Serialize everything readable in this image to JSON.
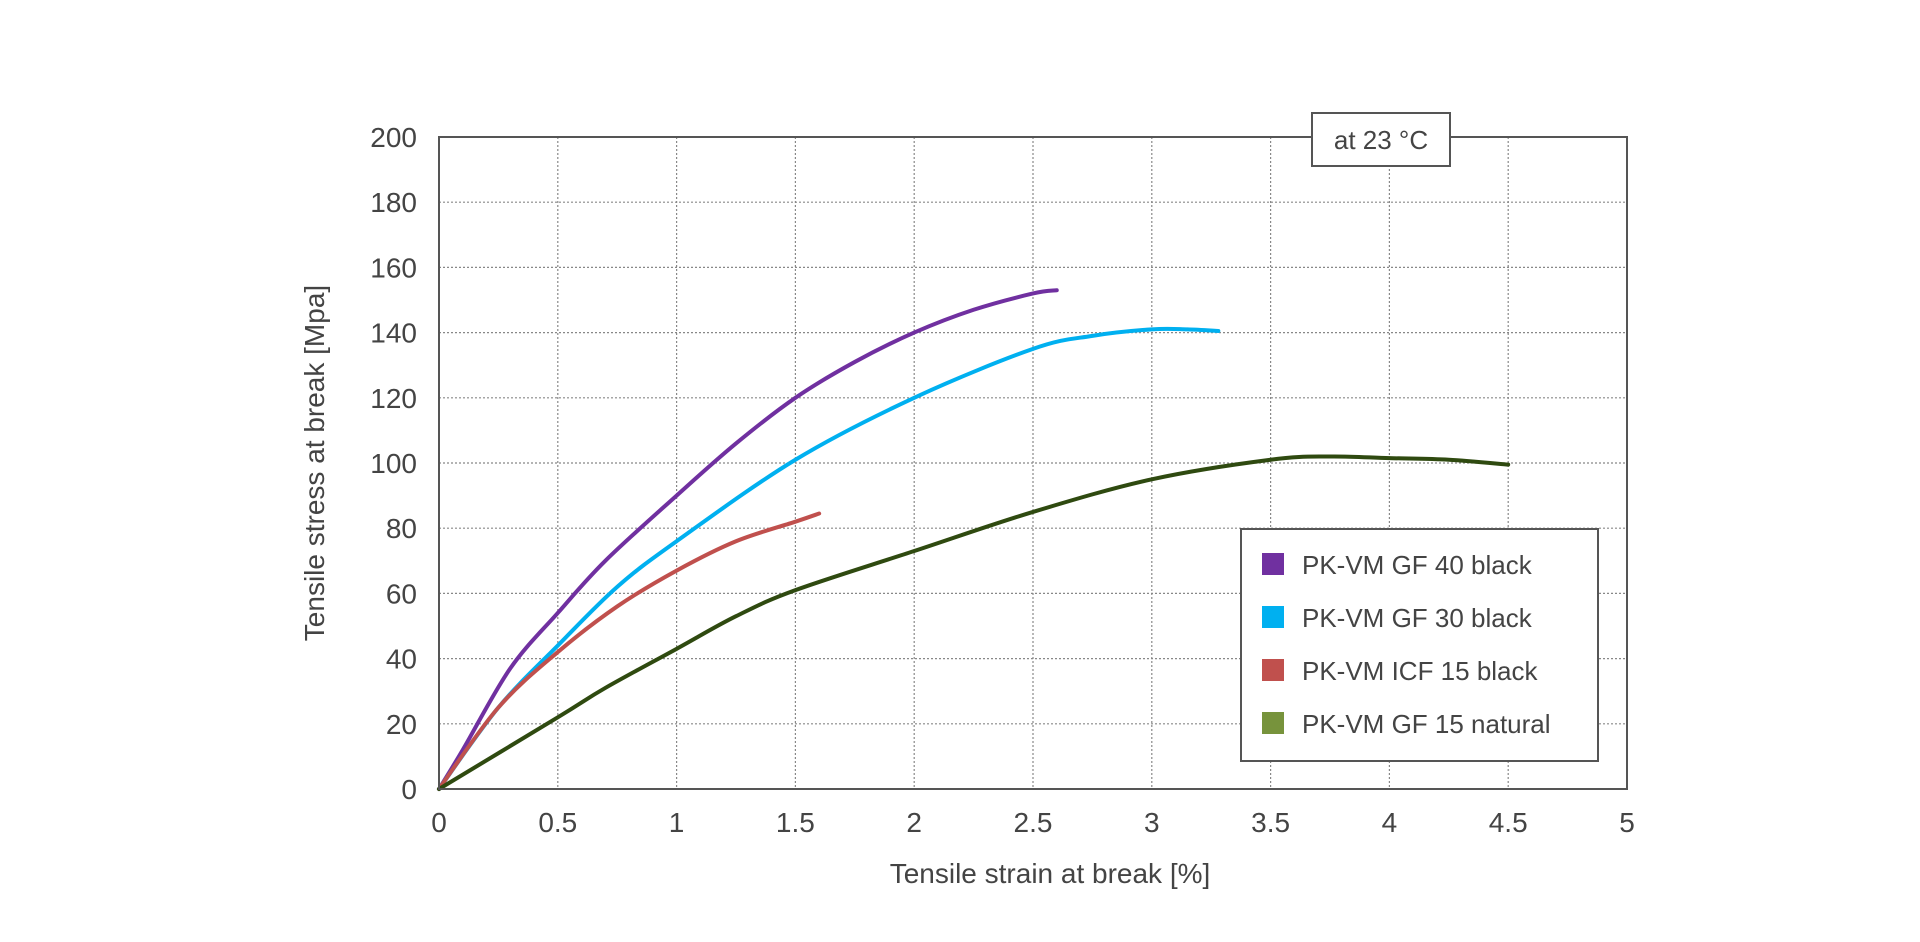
{
  "chart_data": {
    "type": "line",
    "title": "",
    "annotation": "at 23 °C",
    "xlabel": "Tensile strain at break [%]",
    "ylabel": "Tensile stress at break [Mpa]",
    "xlim": [
      0,
      5
    ],
    "ylim": [
      0,
      200
    ],
    "xticks": [
      "0",
      "0.5",
      "1",
      "1.5",
      "2",
      "2.5",
      "3",
      "3.5",
      "4",
      "4.5",
      "5"
    ],
    "yticks": [
      "0",
      "20",
      "40",
      "60",
      "80",
      "100",
      "120",
      "140",
      "160",
      "180",
      "200"
    ],
    "grid": true,
    "legend_position": "bottom-right",
    "series": [
      {
        "name": "PK-VM GF 40 black",
        "color": "#7030a0",
        "legend_color": "#7030a0",
        "x": [
          0,
          0.1,
          0.3,
          0.5,
          0.7,
          1.0,
          1.25,
          1.5,
          1.75,
          2.0,
          2.25,
          2.5,
          2.6
        ],
        "y": [
          0,
          12,
          37,
          54,
          70,
          90,
          106,
          120,
          131,
          140,
          147,
          152,
          153
        ]
      },
      {
        "name": "PK-VM GF 30 black",
        "color": "#00b0f0",
        "legend_color": "#00b0f0",
        "x": [
          0,
          0.25,
          0.5,
          0.75,
          1.0,
          1.5,
          2.0,
          2.5,
          2.75,
          3.0,
          3.15,
          3.28
        ],
        "y": [
          0,
          25,
          44,
          62,
          76,
          101,
          120,
          135,
          139,
          141,
          141,
          140.5
        ]
      },
      {
        "name": "PK-VM ICF 15 black",
        "color": "#c0504d",
        "legend_color": "#c0504d",
        "x": [
          0,
          0.25,
          0.5,
          0.75,
          1.0,
          1.25,
          1.5,
          1.6
        ],
        "y": [
          0,
          25,
          42,
          56,
          67,
          76,
          82,
          84.5
        ]
      },
      {
        "name": "PK-VM GF 15 natural",
        "color": "#2f4a10",
        "legend_color": "#77933c",
        "x": [
          0,
          0.5,
          0.7,
          1.0,
          1.25,
          1.5,
          2.0,
          2.5,
          3.0,
          3.5,
          3.75,
          4.0,
          4.25,
          4.5
        ],
        "y": [
          0,
          22,
          31,
          43,
          53,
          61,
          73,
          85,
          95,
          101,
          102,
          101.5,
          101,
          99.5
        ]
      }
    ]
  }
}
